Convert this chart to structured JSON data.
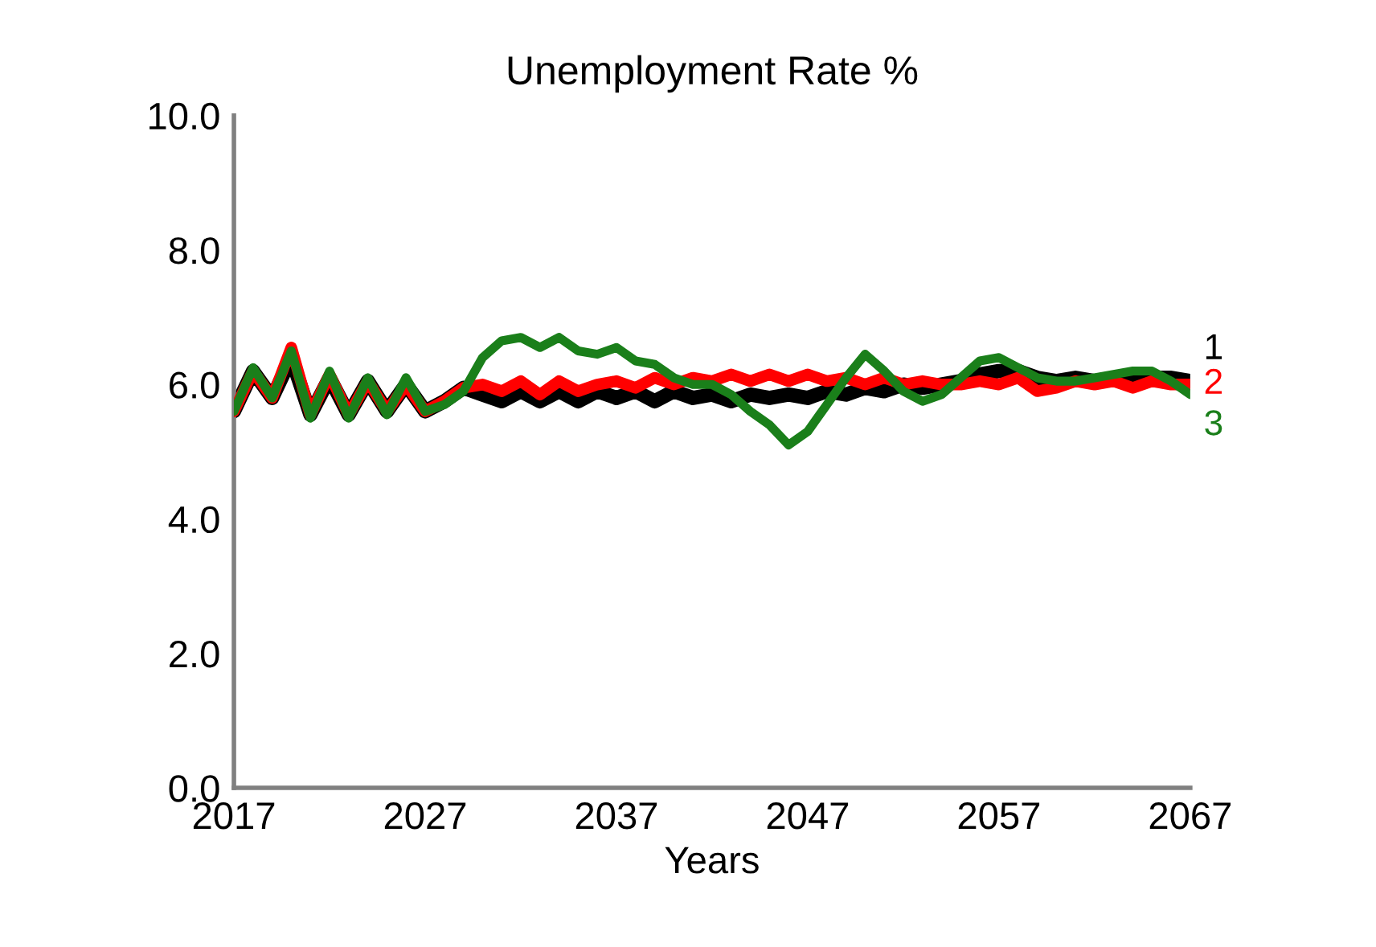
{
  "chart_data": {
    "type": "line",
    "title": "Unemployment Rate %",
    "xlabel": "Years",
    "x": [
      2017,
      2018,
      2019,
      2020,
      2021,
      2022,
      2023,
      2024,
      2025,
      2026,
      2027,
      2028,
      2029,
      2030,
      2031,
      2032,
      2033,
      2034,
      2035,
      2036,
      2037,
      2038,
      2039,
      2040,
      2041,
      2042,
      2043,
      2044,
      2045,
      2046,
      2047,
      2048,
      2049,
      2050,
      2051,
      2052,
      2053,
      2054,
      2055,
      2056,
      2057,
      2058,
      2059,
      2060,
      2061,
      2062,
      2063,
      2064,
      2065,
      2066,
      2067
    ],
    "series": [
      {
        "name": "1",
        "color": "#000000",
        "values": [
          5.6,
          6.2,
          5.8,
          6.4,
          5.55,
          6.1,
          5.55,
          6.05,
          5.6,
          6.0,
          5.6,
          5.75,
          5.95,
          5.85,
          5.75,
          5.9,
          5.75,
          5.9,
          5.75,
          5.9,
          5.8,
          5.9,
          5.75,
          5.9,
          5.8,
          5.85,
          5.75,
          5.85,
          5.8,
          5.85,
          5.8,
          5.9,
          5.85,
          5.95,
          5.9,
          6.0,
          5.95,
          6.0,
          6.05,
          6.15,
          6.2,
          6.2,
          6.1,
          6.05,
          6.1,
          6.05,
          6.1,
          6.05,
          6.1,
          6.1,
          6.05
        ]
      },
      {
        "name": "2",
        "color": "#ff0000",
        "values": [
          5.6,
          6.2,
          5.8,
          6.55,
          5.55,
          6.15,
          5.55,
          6.05,
          5.6,
          6.0,
          5.6,
          5.75,
          5.95,
          6.0,
          5.9,
          6.05,
          5.85,
          6.05,
          5.9,
          6.0,
          6.05,
          5.95,
          6.1,
          6.0,
          6.1,
          6.05,
          6.15,
          6.05,
          6.15,
          6.05,
          6.15,
          6.05,
          6.1,
          6.0,
          6.1,
          6.0,
          6.05,
          6.0,
          6.0,
          6.05,
          6.0,
          6.1,
          5.9,
          5.95,
          6.05,
          6.0,
          6.05,
          5.95,
          6.05,
          6.0,
          6.0
        ]
      },
      {
        "name": "3",
        "color": "#1a7f1a",
        "values": [
          5.6,
          6.25,
          5.8,
          6.5,
          5.5,
          6.2,
          5.5,
          6.1,
          5.55,
          6.1,
          5.6,
          5.7,
          5.9,
          6.4,
          6.65,
          6.7,
          6.55,
          6.7,
          6.5,
          6.45,
          6.55,
          6.35,
          6.3,
          6.1,
          6.0,
          6.0,
          5.85,
          5.6,
          5.4,
          5.1,
          5.3,
          5.7,
          6.1,
          6.45,
          6.2,
          5.9,
          5.75,
          5.85,
          6.1,
          6.35,
          6.4,
          6.25,
          6.1,
          6.05,
          6.05,
          6.1,
          6.15,
          6.2,
          6.2,
          6.05,
          5.85
        ]
      }
    ],
    "xlim": [
      2017,
      2067
    ],
    "xticks": [
      2017,
      2027,
      2037,
      2047,
      2057,
      2067
    ],
    "ylim": [
      0,
      10
    ],
    "yticks": [
      {
        "value": 0,
        "label": "0.0"
      },
      {
        "value": 2,
        "label": "2.0"
      },
      {
        "value": 4,
        "label": "4.0"
      },
      {
        "value": 6,
        "label": "6.0"
      },
      {
        "value": 8,
        "label": "8.0"
      },
      {
        "value": 10,
        "label": "10.0"
      }
    ],
    "grid": false,
    "legend": false,
    "marker": "none",
    "line_style": "solid"
  }
}
